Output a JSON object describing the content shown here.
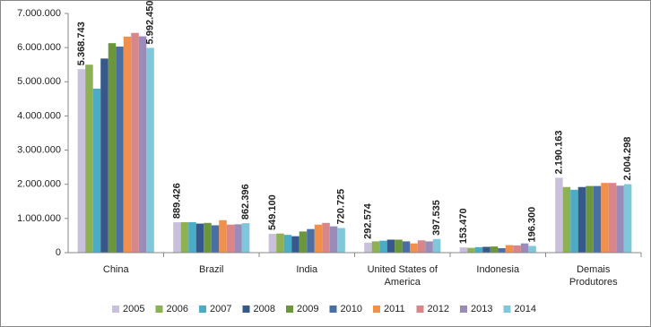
{
  "chart_data": {
    "type": "bar",
    "categories": [
      "China",
      "Brazil",
      "India",
      "United States of America",
      "Indonesia",
      "Demais Produtores"
    ],
    "series": [
      {
        "name": "2005",
        "color": "#c9c0dc",
        "values": [
          5368743,
          889426,
          549100,
          292574,
          153470,
          2190163
        ],
        "value_labels": [
          "5.368.743",
          "889.426",
          "549.100",
          "292.574",
          "153.470",
          "2.190.163"
        ]
      },
      {
        "name": "2006",
        "color": "#8db153",
        "values": [
          5500000,
          890000,
          560000,
          330000,
          140000,
          1920000
        ]
      },
      {
        "name": "2007",
        "color": "#4bacc6",
        "values": [
          4800000,
          890000,
          520000,
          350000,
          160000,
          1840000
        ]
      },
      {
        "name": "2008",
        "color": "#36588a",
        "values": [
          5680000,
          850000,
          480000,
          380000,
          170000,
          1920000
        ]
      },
      {
        "name": "2009",
        "color": "#6b963b",
        "values": [
          6130000,
          870000,
          620000,
          380000,
          180000,
          1950000
        ]
      },
      {
        "name": "2010",
        "color": "#4a6fa5",
        "values": [
          6030000,
          800000,
          690000,
          330000,
          130000,
          1950000
        ]
      },
      {
        "name": "2011",
        "color": "#f0904a",
        "values": [
          6320000,
          950000,
          820000,
          270000,
          220000,
          2040000
        ]
      },
      {
        "name": "2012",
        "color": "#d9868a",
        "values": [
          6430000,
          820000,
          870000,
          360000,
          210000,
          2040000
        ]
      },
      {
        "name": "2013",
        "color": "#9b8bb8",
        "values": [
          6330000,
          830000,
          770000,
          330000,
          270000,
          1960000
        ]
      },
      {
        "name": "2014",
        "color": "#80c7dc",
        "values": [
          5992450,
          862396,
          720725,
          397535,
          196300,
          2004298
        ],
        "value_labels": [
          "5.992.450",
          "862.396",
          "720.725",
          "397.535",
          "196.300",
          "2.004.298"
        ]
      }
    ],
    "ylim": [
      0,
      7000000
    ],
    "yticks": [
      0,
      {
        "value": 1000000,
        "label": "1.000.000"
      },
      {
        "value": 2000000,
        "label": "2.000.000"
      },
      {
        "value": 3000000,
        "label": "3.000.000"
      },
      {
        "value": 4000000,
        "label": "4.000.000"
      },
      {
        "value": 5000000,
        "label": "5.000.000"
      },
      {
        "value": 6000000,
        "label": "6.000.000"
      },
      {
        "value": 7000000,
        "label": "7.000.000"
      }
    ],
    "grid": false
  }
}
